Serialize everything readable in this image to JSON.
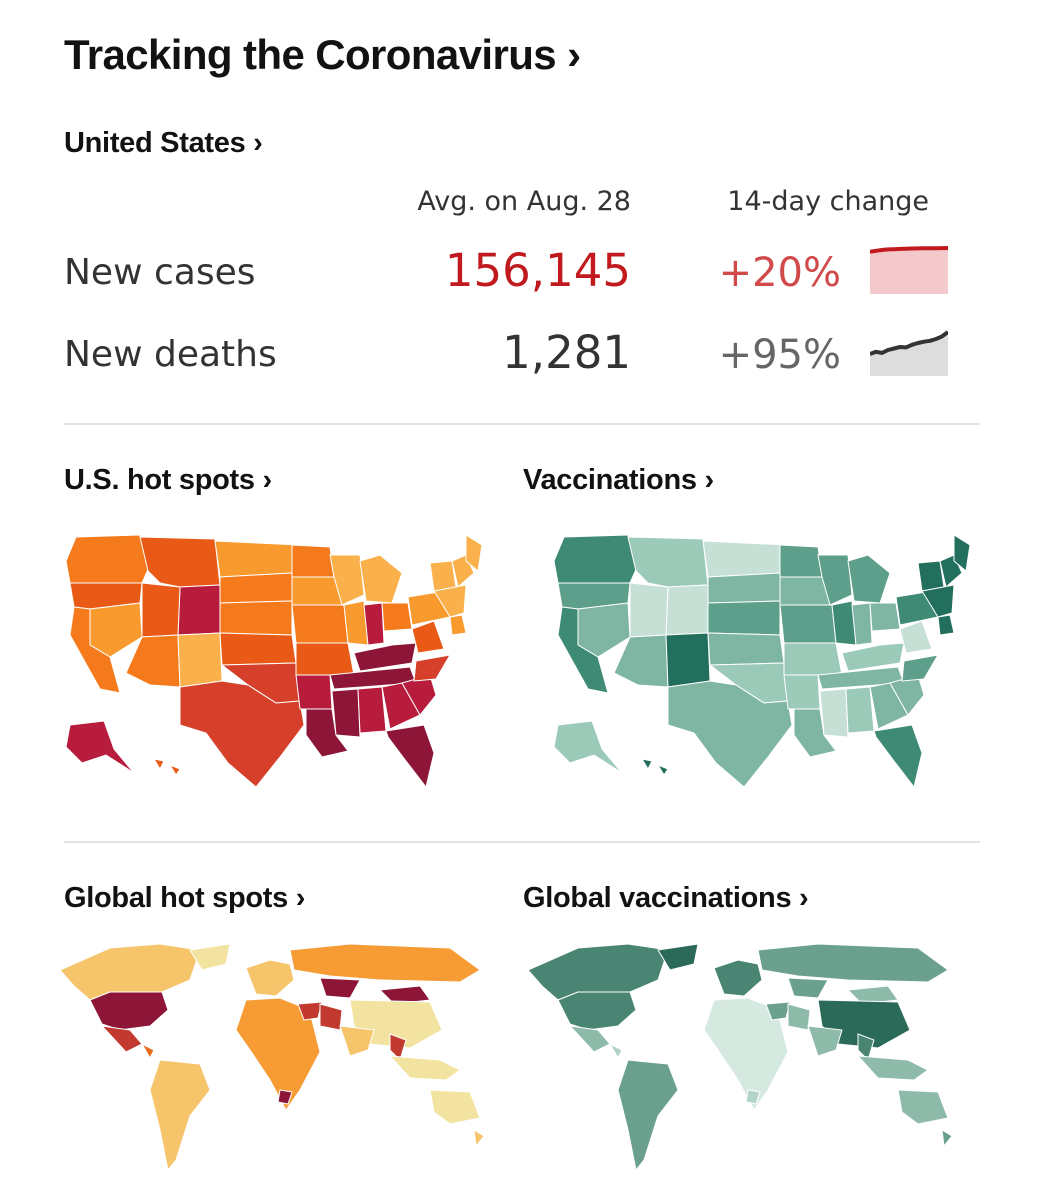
{
  "header": {
    "title": "Tracking the Coronavirus ›"
  },
  "us_summary": {
    "section_title": "United States ›",
    "columns": {
      "average": "Avg. on Aug. 28",
      "change": "14-day change"
    },
    "rows": [
      {
        "label": "New cases",
        "value": "156,145",
        "change": "+20%",
        "trend": [
          0.62,
          0.72,
          0.8,
          0.86,
          0.88,
          0.91,
          0.93,
          0.95,
          0.96,
          0.97,
          0.97,
          0.98,
          0.99,
          1.0
        ]
      },
      {
        "label": "New deaths",
        "value": "1,281",
        "change": "+95%",
        "trend": [
          0.0,
          0.1,
          0.05,
          0.18,
          0.25,
          0.32,
          0.3,
          0.42,
          0.5,
          0.56,
          0.6,
          0.68,
          0.8,
          1.0
        ]
      }
    ],
    "colors": {
      "cases": "#c0191e",
      "cases_change": "#d14a4a",
      "cases_fill": "#f3c9cc",
      "deaths": "#333333",
      "deaths_change": "#666666",
      "deaths_fill": "#dddddd"
    }
  },
  "map_sections": [
    {
      "title": "U.S. hot spots ›",
      "map": "us-choropleth",
      "palette": [
        "#fbb14b",
        "#f89a2e",
        "#f47a1b",
        "#e85a16",
        "#d6402b",
        "#b71c3c",
        "#8c1538"
      ]
    },
    {
      "title": "Vaccinations ›",
      "map": "us-choropleth",
      "palette": [
        "#c6e0d6",
        "#9ccab9",
        "#7eb5a3",
        "#5e9f8c",
        "#3f8a75",
        "#236f5e"
      ]
    },
    {
      "title": "Global hot spots ›",
      "map": "world-choropleth",
      "palette": [
        "#f2e3a0",
        "#f6c46b",
        "#f79b35",
        "#e86a1c",
        "#c23a2f",
        "#8c1538"
      ]
    },
    {
      "title": "Global vaccinations ›",
      "map": "world-choropleth",
      "palette": [
        "#d6e9e0",
        "#b2d4c6",
        "#8dbaa9",
        "#6aa08d",
        "#4a8472",
        "#2b6a59"
      ]
    }
  ]
}
